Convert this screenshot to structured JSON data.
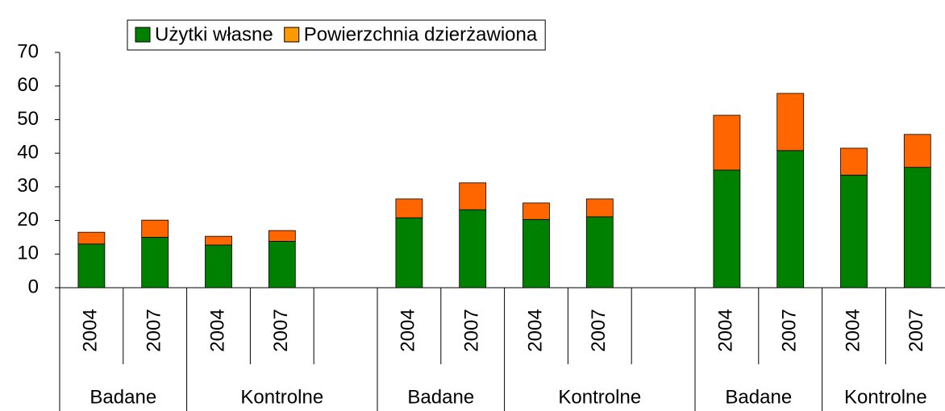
{
  "chart_data": {
    "type": "bar",
    "stacked": true,
    "groups": [
      {
        "name": "Badane",
        "categories": [
          "2004",
          "2007"
        ]
      },
      {
        "name": "Kontrolne",
        "categories": [
          "2004",
          "2007",
          null
        ]
      },
      {
        "name": "Badane",
        "categories": [
          "2004",
          "2007"
        ]
      },
      {
        "name": "Kontrolne",
        "categories": [
          "2004",
          "2007",
          null
        ]
      },
      {
        "name": "Badane",
        "categories": [
          "2004",
          "2007"
        ]
      },
      {
        "name": "Kontrolne",
        "categories": [
          "2004",
          "2007"
        ]
      }
    ],
    "series": [
      {
        "name": "Użytki własne",
        "color": "#008000",
        "legend_color": "#008000",
        "values": [
          13,
          15,
          12.7,
          13.8,
          null,
          20.8,
          23.2,
          20.3,
          21.1,
          null,
          35,
          40.8,
          33.5,
          35.8
        ]
      },
      {
        "name": "Powierzchnia dzierżawiona",
        "color": "#ff6600",
        "legend_color": "#ff9900",
        "values": [
          3.5,
          5.1,
          2.6,
          3.2,
          null,
          5.6,
          8.0,
          4.9,
          5.3,
          null,
          16.3,
          17.0,
          8.0,
          9.8
        ]
      }
    ],
    "ylim": [
      0,
      70
    ],
    "yticks": [
      0,
      10,
      20,
      30,
      40,
      50,
      60,
      70
    ],
    "legend": "top"
  }
}
